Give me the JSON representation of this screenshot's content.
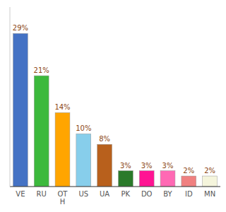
{
  "chart_data": {
    "type": "bar",
    "categories": [
      "VE",
      "RU",
      "OT\nH",
      "US",
      "UA",
      "PK",
      "DO",
      "BY",
      "ID",
      "MN"
    ],
    "values": [
      29,
      21,
      14,
      10,
      8,
      3,
      3,
      3,
      2,
      2
    ],
    "value_labels": [
      "29%",
      "21%",
      "14%",
      "10%",
      "8%",
      "3%",
      "3%",
      "3%",
      "2%",
      "2%"
    ],
    "colors": [
      "#4472c4",
      "#3cb93c",
      "#ffa500",
      "#87ceeb",
      "#b8601c",
      "#2a7a2a",
      "#ff1493",
      "#ff69b4",
      "#f08080",
      "#f5f5dc"
    ],
    "ylim": [
      0,
      34
    ],
    "data_labels": true,
    "tick_labels": "x",
    "grid": false
  }
}
